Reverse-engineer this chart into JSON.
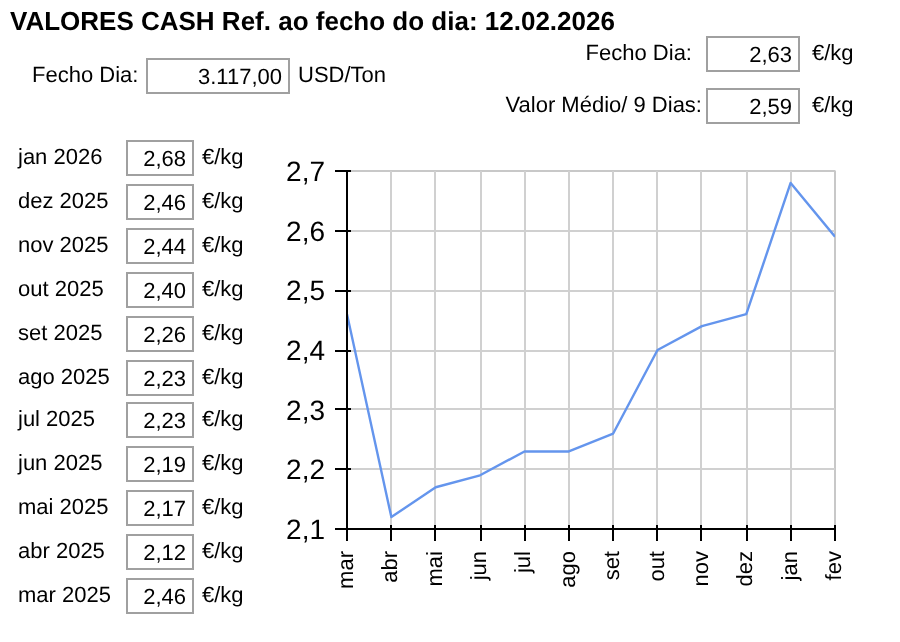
{
  "chart_data": {
    "type": "line",
    "title": "VALORES CASH Ref. ao fecho do dia: 12.02.2026",
    "categories": [
      "mar",
      "abr",
      "mai",
      "jun",
      "jul",
      "ago",
      "set",
      "out",
      "nov",
      "dez",
      "jan",
      "fev"
    ],
    "series": [
      {
        "color": "#6495ed",
        "values": [
          2.46,
          2.12,
          2.17,
          2.19,
          2.23,
          2.23,
          2.26,
          2.4,
          2.44,
          2.46,
          2.68,
          2.59
        ]
      }
    ],
    "ylim": [
      2.1,
      2.7
    ],
    "yticks": [
      {
        "value": 2.1,
        "label": "2,1"
      },
      {
        "value": 2.2,
        "label": "2,2"
      },
      {
        "value": 2.3,
        "label": "2,3"
      },
      {
        "value": 2.4,
        "label": "2,4"
      },
      {
        "value": 2.5,
        "label": "2,5"
      },
      {
        "value": 2.6,
        "label": "2,6"
      },
      {
        "value": 2.7,
        "label": "2,7"
      }
    ],
    "grid": true,
    "marker": "none",
    "line_style": "solid",
    "annotations": [
      "Fecho Dia:",
      "3.117,00",
      "USD/Ton",
      "Fecho Dia:",
      "2,63",
      "€/kg",
      "Valor Médio/ 9 Dias:",
      "2,59",
      "€/kg",
      "jan 2026",
      "2,68",
      "€/kg",
      "dez 2025",
      "2,46",
      "€/kg",
      "nov 2025",
      "2,44",
      "€/kg",
      "out 2025",
      "2,40",
      "€/kg",
      "set 2025",
      "2,26",
      "€/kg",
      "ago 2025",
      "2,23",
      "€/kg",
      "jul 2025",
      "2,23",
      "€/kg",
      "jun 2025",
      "2,19",
      "€/kg",
      "mai 2025",
      "2,17",
      "€/kg",
      "abr 2025",
      "2,12",
      "€/kg",
      "mar 2025",
      "2,46",
      "€/kg"
    ]
  }
}
